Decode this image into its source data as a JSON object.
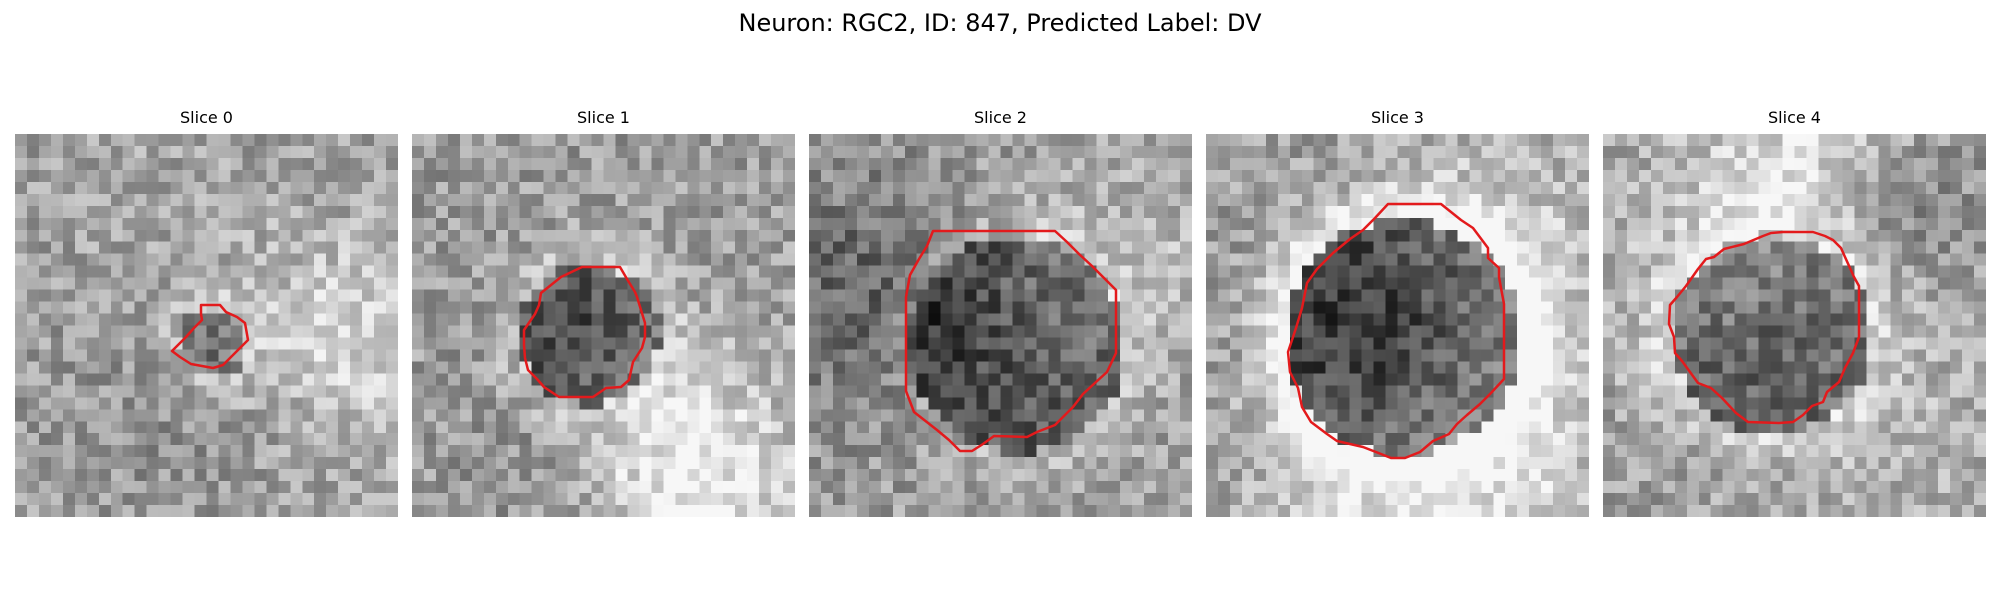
{
  "figure": {
    "title": "Neuron: RGC2, ID: 847, Predicted Label: DV",
    "contour_color": "#e31a1c"
  },
  "panels": [
    {
      "title": "Slice 0"
    },
    {
      "title": "Slice 1"
    },
    {
      "title": "Slice 2"
    },
    {
      "title": "Slice 3"
    },
    {
      "title": "Slice 4"
    }
  ]
}
